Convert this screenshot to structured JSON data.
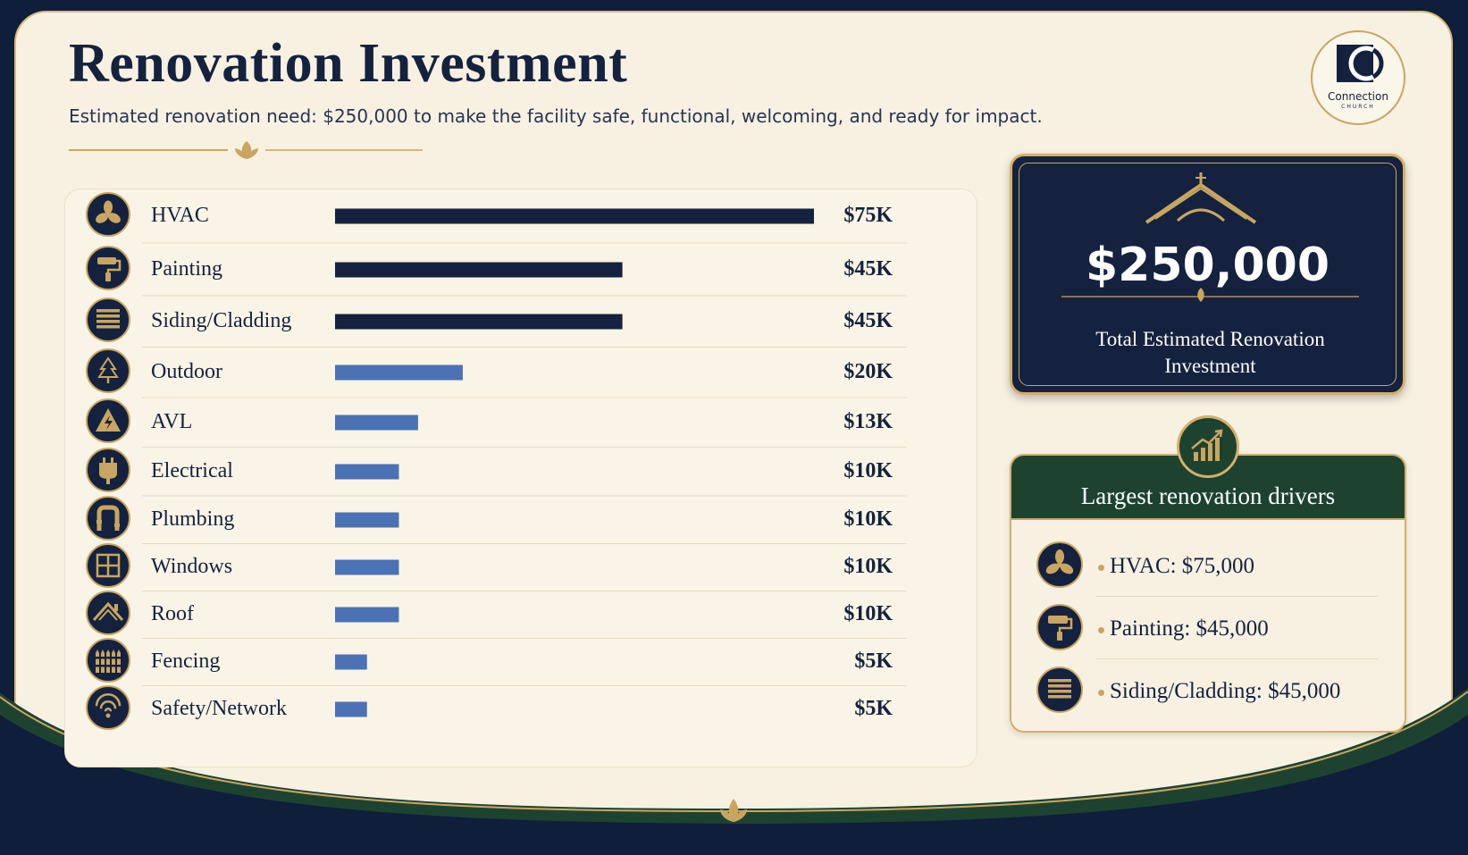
{
  "header": {
    "title": "Renovation Investment",
    "subtitle": "Estimated renovation need: $250,000 to make the facility safe, functional, welcoming, and ready for impact."
  },
  "logo": {
    "name": "Connection",
    "sub": "CHURCH"
  },
  "colors": {
    "navy": "#14223f",
    "gold": "#c9a560",
    "blue": "#4a72b5",
    "green": "#1d4330",
    "cream": "#f8f1e2"
  },
  "chart_data": {
    "type": "bar",
    "orientation": "horizontal",
    "categories": [
      "HVAC",
      "Painting",
      "Siding/Cladding",
      "Outdoor",
      "AVL",
      "Electrical",
      "Plumbing",
      "Windows",
      "Roof",
      "Fencing",
      "Safety/Network"
    ],
    "values": [
      75,
      45,
      45,
      20,
      13,
      10,
      10,
      10,
      10,
      5,
      5
    ],
    "value_labels": [
      "$75K",
      "$45K",
      "$45K",
      "$20K",
      "$13K",
      "$10K",
      "$10K",
      "$10K",
      "$10K",
      "$5K",
      "$5K"
    ],
    "units": "$K",
    "icons": [
      "fan-icon",
      "paint-roller-icon",
      "siding-icon",
      "tree-icon",
      "warning-icon",
      "plug-icon",
      "pipe-icon",
      "window-icon",
      "roof-icon",
      "fence-icon",
      "wifi-icon"
    ],
    "bar_colors": [
      "#14223f",
      "#14223f",
      "#14223f",
      "#4a72b5",
      "#4a72b5",
      "#4a72b5",
      "#4a72b5",
      "#4a72b5",
      "#4a72b5",
      "#4a72b5",
      "#4a72b5"
    ],
    "xlim": [
      0,
      75
    ],
    "grid": false,
    "legend": "none"
  },
  "total": {
    "amount": "$250,000",
    "label": "Total Estimated Renovation Investment",
    "icon": "church-roof-icon"
  },
  "drivers": {
    "title": "Largest renovation drivers",
    "badge_icon": "growth-chart-icon",
    "items": [
      {
        "label": "HVAC: $75,000",
        "icon": "fan-icon"
      },
      {
        "label": "Painting: $45,000",
        "icon": "paint-roller-icon"
      },
      {
        "label": "Siding/Cladding: $45,000",
        "icon": "siding-icon"
      }
    ]
  }
}
